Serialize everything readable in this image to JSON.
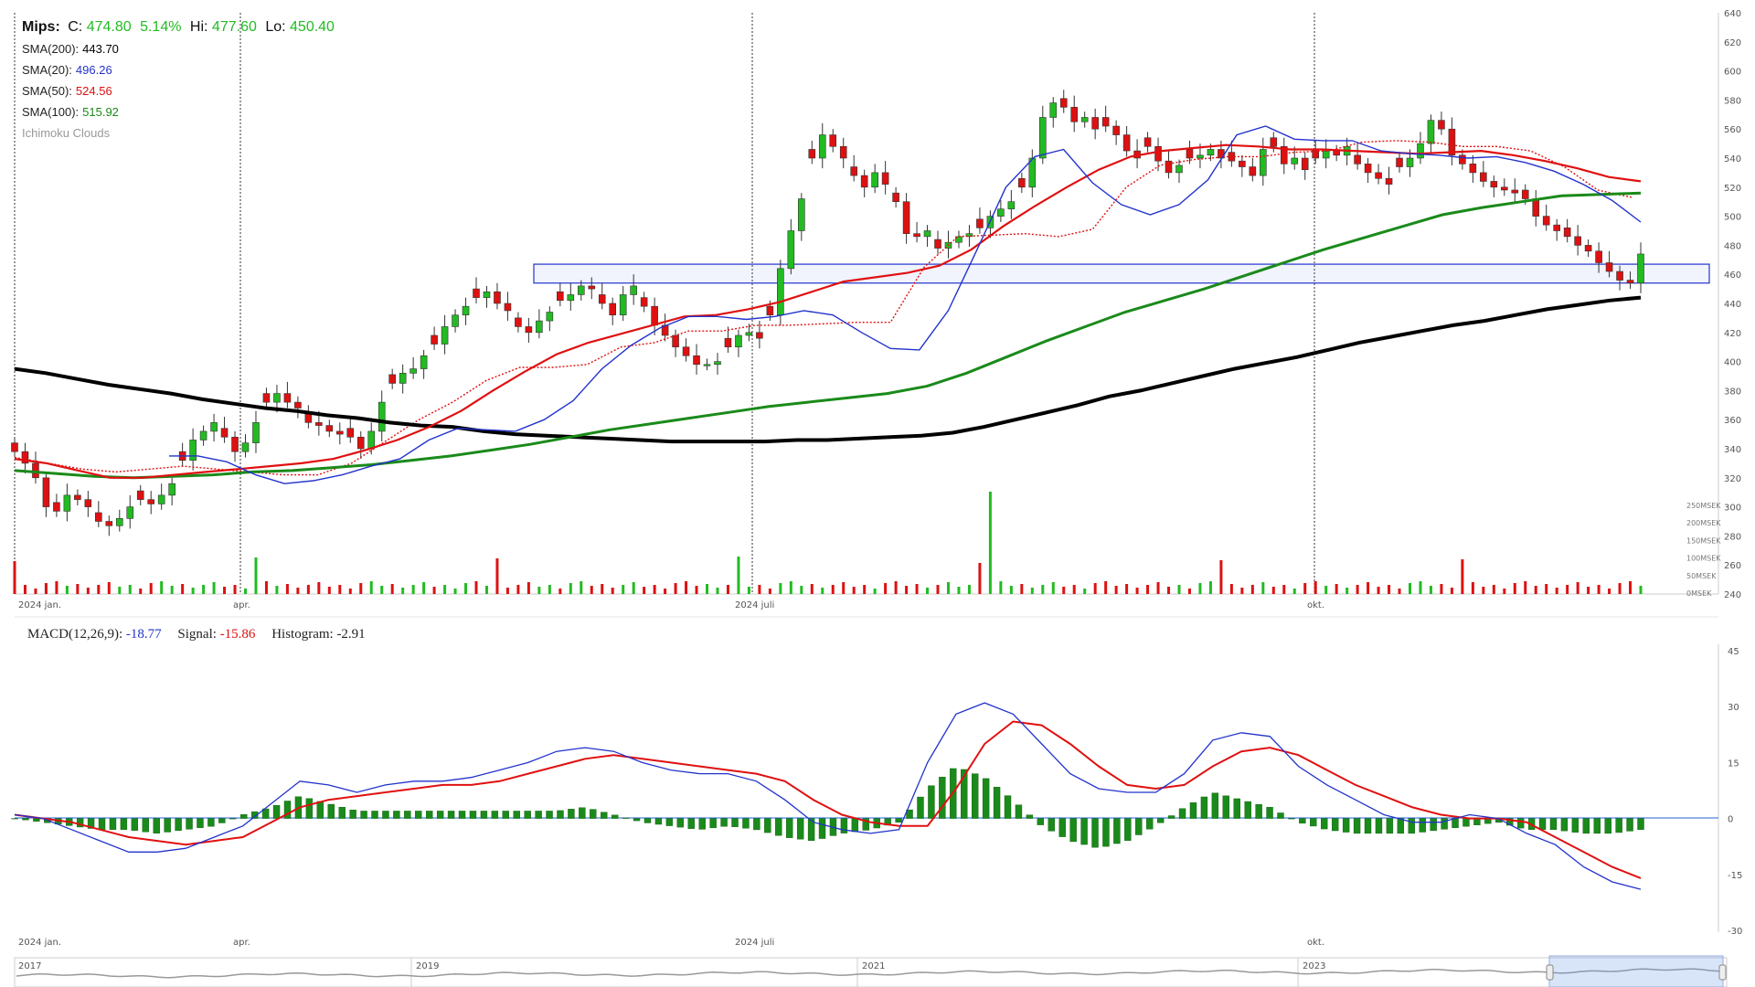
{
  "header": {
    "symbol": "Mips:",
    "close_label": "C:",
    "close_value": "474.80",
    "change_pct": "5.14%",
    "hi_label": "Hi:",
    "hi_value": "477.60",
    "lo_label": "Lo:",
    "lo_value": "450.40"
  },
  "legend": [
    {
      "label": "SMA(200):",
      "value": "443.70",
      "color": "#000000"
    },
    {
      "label": "SMA(20):",
      "value": "496.26",
      "color": "#2233cc"
    },
    {
      "label": "SMA(50):",
      "value": "524.56",
      "color": "#e01010"
    },
    {
      "label": "SMA(100):",
      "value": "515.92",
      "color": "#1a8a1a"
    },
    {
      "label": "Ichimoku Clouds",
      "value": "",
      "color": "#999999"
    }
  ],
  "colors": {
    "up": "#22bb22",
    "down": "#dd1111",
    "sma200": "#000000",
    "sma20": "#2233cc",
    "sma50": "#e01010",
    "sma100": "#1a8a1a",
    "ichimoku": "#e01010",
    "zone": "#2233cc"
  },
  "macd_header": {
    "macd_label": "MACD(12,26,9):",
    "macd_value": "-18.77",
    "signal_label": "Signal:",
    "signal_value": "-15.86",
    "hist_label": "Histogram:",
    "hist_value": "-2.91"
  },
  "navigator": {
    "years": [
      "2017",
      "2019",
      "2021",
      "2023"
    ]
  },
  "chart_data": [
    {
      "type": "candlestick",
      "ylim": [
        240,
        640
      ],
      "y_ticks": [
        "640",
        "620",
        "600",
        "580",
        "560",
        "540",
        "520",
        "500",
        "480",
        "460",
        "440",
        "420",
        "400",
        "380",
        "360",
        "340",
        "320",
        "300",
        "280",
        "260",
        "240"
      ],
      "x_ticks": [
        "2024 jan.",
        "apr.",
        "2024 juli",
        "okt."
      ],
      "volume_ticks": [
        "250MSEK",
        "200MSEK",
        "150MSEK",
        "100MSEK",
        "50MSEK",
        "0MSEK"
      ],
      "support_zone": [
        454,
        467
      ],
      "sma200": [
        395,
        392,
        388,
        384,
        381,
        378,
        374,
        371,
        368,
        366,
        363,
        361,
        358,
        356,
        355,
        352,
        350,
        349,
        348,
        347,
        346,
        345,
        345,
        345,
        345,
        346,
        346,
        347,
        348,
        349,
        351,
        355,
        360,
        365,
        370,
        376,
        380,
        385,
        390,
        395,
        399,
        403,
        408,
        413,
        417,
        421,
        425,
        428,
        432,
        436,
        439,
        442,
        444
      ],
      "sma20": [
        335,
        335,
        331,
        322,
        316,
        318,
        322,
        328,
        333,
        346,
        354,
        353,
        352,
        360,
        373,
        395,
        411,
        423,
        431,
        431,
        429,
        431,
        435,
        432,
        420,
        409,
        408,
        435,
        477,
        520,
        541,
        546,
        523,
        508,
        501,
        508,
        525,
        556,
        562,
        553,
        552,
        552,
        545,
        543,
        542,
        540,
        541,
        537,
        531,
        522,
        511,
        496
      ],
      "sma50": [
        333,
        330,
        325,
        320,
        320,
        322,
        324,
        326,
        328,
        330,
        333,
        339,
        346,
        355,
        366,
        380,
        393,
        405,
        413,
        419,
        425,
        431,
        432,
        436,
        441,
        448,
        455,
        458,
        461,
        466,
        477,
        493,
        507,
        520,
        532,
        541,
        545,
        547,
        549,
        548,
        546,
        546,
        545,
        544,
        543,
        544,
        545,
        542,
        538,
        533,
        527,
        524
      ],
      "sma100": [
        325,
        323,
        321,
        320,
        321,
        322,
        324,
        325,
        327,
        329,
        332,
        335,
        339,
        343,
        348,
        353,
        357,
        361,
        365,
        369,
        372,
        375,
        378,
        383,
        392,
        403,
        414,
        424,
        434,
        442,
        450,
        459,
        468,
        477,
        485,
        493,
        501,
        506,
        510,
        514,
        515,
        516
      ],
      "ichimoku_base": [
        334,
        330,
        326,
        324,
        326,
        328,
        326,
        324,
        322,
        322,
        330,
        345,
        360,
        372,
        387,
        396,
        396,
        398,
        410,
        413,
        421,
        421,
        425,
        425,
        426,
        427,
        427,
        465,
        486,
        487,
        488,
        486,
        491,
        520,
        535,
        539,
        541,
        541,
        544,
        545,
        551,
        552,
        551,
        548,
        548,
        545,
        534,
        518,
        513
      ],
      "macd_ylim": [
        -30,
        45
      ],
      "macd_ticks": [
        "45",
        "30",
        "15",
        "0",
        "-15",
        "-30"
      ],
      "macd_line": [
        1,
        0,
        -3,
        -6,
        -9,
        -9,
        -8,
        -5,
        -2,
        4,
        10,
        9,
        7,
        9,
        10,
        10,
        11,
        13,
        15,
        18,
        19,
        18,
        15,
        13,
        12,
        12,
        10,
        5,
        -1,
        -3,
        -4,
        -3,
        15,
        28,
        31,
        28,
        20,
        12,
        8,
        7,
        7,
        12,
        21,
        23,
        22,
        14,
        9,
        5,
        1,
        -1,
        -1,
        1,
        0,
        -4,
        -7,
        -13,
        -17,
        -19
      ],
      "signal_line": [
        1,
        0,
        -1,
        -3,
        -5,
        -6,
        -7,
        -6,
        -5,
        -1,
        3,
        5,
        6,
        7,
        8,
        9,
        9,
        10,
        12,
        14,
        16,
        17,
        16,
        15,
        14,
        13,
        12,
        10,
        5,
        1,
        -1,
        -2,
        -2,
        8,
        20,
        26,
        25,
        20,
        14,
        9,
        8,
        9,
        14,
        18,
        19,
        17,
        13,
        9,
        6,
        3,
        1,
        0,
        0,
        -1,
        -5,
        -9,
        -13,
        -16
      ],
      "histogram": [
        0,
        -1,
        -2,
        -3,
        -3,
        -4,
        -3,
        -2,
        1,
        3,
        6,
        4,
        2,
        2,
        2,
        2,
        2,
        2,
        2,
        2,
        3,
        1,
        -1,
        -2,
        -3,
        -2,
        -3,
        -5,
        -6,
        -4,
        -3,
        -1,
        8,
        14,
        11,
        5,
        -2,
        -6,
        -8,
        -6,
        -2,
        3,
        7,
        5,
        3,
        -1,
        -3,
        -4,
        -4,
        -4,
        -3,
        -2,
        -1,
        -3,
        -3,
        -4,
        -4,
        -3
      ]
    }
  ]
}
